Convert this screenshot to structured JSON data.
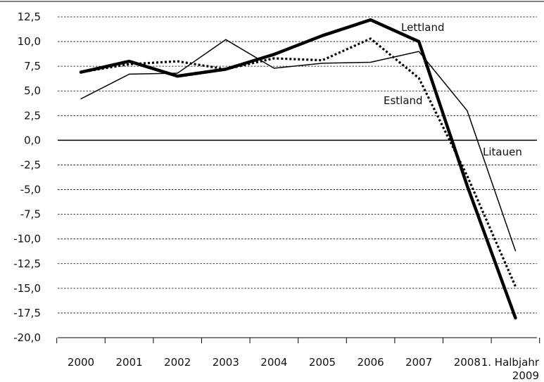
{
  "chart_data": {
    "type": "line",
    "title": "",
    "xlabel": "",
    "ylabel": "",
    "categories": [
      "2000",
      "2001",
      "2002",
      "2003",
      "2004",
      "2005",
      "2006",
      "2007",
      "2008",
      "1. Halbjahr 2009"
    ],
    "y_ticks": [
      "12,5",
      "10,0",
      "7,5",
      "5,0",
      "2,5",
      "0,0",
      "-2,5",
      "-5,0",
      "-7,5",
      "-10,0",
      "-12,5",
      "-15,0",
      "-17,5",
      "-20,0"
    ],
    "ylim": [
      -20,
      12.5
    ],
    "grid": "horizontal dashed",
    "series": [
      {
        "name": "Lettland",
        "values": [
          6.9,
          8.0,
          6.5,
          7.2,
          8.7,
          10.6,
          12.2,
          10.0,
          -4.6,
          -18.0
        ],
        "color": "#000000",
        "style": "solid-thick"
      },
      {
        "name": "Estland",
        "values": [
          6.9,
          7.7,
          8.0,
          7.2,
          8.3,
          8.1,
          10.3,
          6.3,
          -3.6,
          -14.8
        ],
        "color": "#000000",
        "style": "dotted"
      },
      {
        "name": "Litauen",
        "values": [
          4.2,
          6.7,
          6.8,
          10.2,
          7.3,
          7.8,
          7.9,
          9.0,
          3.0,
          -11.2
        ],
        "color": "#000000",
        "style": "solid-thin"
      }
    ]
  }
}
